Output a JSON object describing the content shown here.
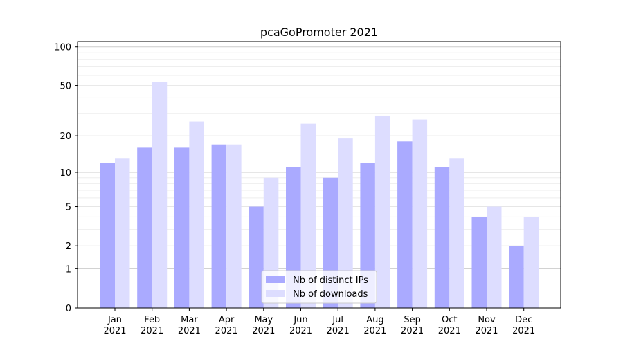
{
  "chart_data": {
    "type": "bar",
    "title": "pcaGoPromoter 2021",
    "xlabel": "",
    "ylabel": "",
    "y_scale": "log(1+y)",
    "ylim": [
      0,
      110
    ],
    "y_ticks": [
      0,
      1,
      2,
      5,
      10,
      20,
      50,
      100
    ],
    "categories": [
      "Jan",
      "Feb",
      "Mar",
      "Apr",
      "May",
      "Jun",
      "Jul",
      "Aug",
      "Sep",
      "Oct",
      "Nov",
      "Dec"
    ],
    "category_sublabel": "2021",
    "series": [
      {
        "name": "Nb of distinct IPs",
        "color": "#aaaaff",
        "values": [
          12,
          16,
          16,
          17,
          5,
          11,
          9,
          12,
          18,
          11,
          4,
          2
        ]
      },
      {
        "name": "Nb of downloads",
        "color": "#ddddff",
        "values": [
          13,
          53,
          26,
          17,
          9,
          25,
          19,
          29,
          27,
          13,
          5,
          4
        ]
      }
    ],
    "grid": true,
    "legend_position": "bottom-center"
  }
}
